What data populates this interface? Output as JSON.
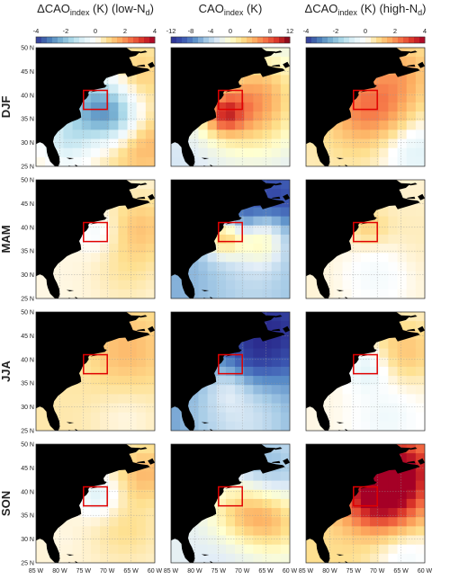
{
  "chart_data": {
    "type": "heatmap",
    "columns": [
      {
        "delta": "Δ",
        "base": "CAO",
        "sub": "index",
        "unit": " (K)",
        "tail": " (low-N",
        "tailsub": "d",
        "close": ")",
        "colorbar": {
          "ticks": [
            "-4",
            "-2",
            "0",
            "2",
            "4"
          ],
          "range": [
            -4,
            4
          ],
          "colors": [
            "#313695",
            "#4575b4",
            "#74add1",
            "#abd9e9",
            "#e0f3f8",
            "#ffffff",
            "#fee090",
            "#fdae61",
            "#f46d43",
            "#d73027",
            "#a50026"
          ]
        }
      },
      {
        "delta": "",
        "base": "CAO",
        "sub": "index",
        "unit": " (K)",
        "tail": "",
        "tailsub": "",
        "close": "",
        "colorbar": {
          "ticks": [
            "-12",
            "-8",
            "-4",
            "0",
            "4",
            "8",
            "12"
          ],
          "range": [
            -12,
            12
          ],
          "colors": [
            "#2b2d8f",
            "#3a55b0",
            "#5b8fc9",
            "#a6cbe6",
            "#e3eef7",
            "#ffffd0",
            "#fee08b",
            "#fdae61",
            "#f46d43",
            "#d73027",
            "#7a0018"
          ]
        }
      },
      {
        "delta": "Δ",
        "base": "CAO",
        "sub": "index",
        "unit": " (K)",
        "tail": " (high-N",
        "tailsub": "d",
        "close": ")",
        "colorbar": {
          "ticks": [
            "-4",
            "-2",
            "0",
            "2",
            "4"
          ],
          "range": [
            -4,
            4
          ],
          "colors": [
            "#313695",
            "#4575b4",
            "#74add1",
            "#abd9e9",
            "#e0f3f8",
            "#ffffff",
            "#fee090",
            "#fdae61",
            "#f46d43",
            "#d73027",
            "#a50026"
          ]
        }
      }
    ],
    "rows": [
      "DJF",
      "MAM",
      "JJA",
      "SON"
    ],
    "lat_ticks": [
      "50 N",
      "45 N",
      "40 N",
      "35 N",
      "30 N",
      "25 N"
    ],
    "lon_ticks": [
      "85 W",
      "80 W",
      "75 W",
      "70 W",
      "65 W",
      "60 W"
    ],
    "lon_range": [
      -85,
      -60
    ],
    "lat_range": [
      25,
      50
    ],
    "region_box": {
      "lon": [
        -75,
        -70
      ],
      "lat": [
        37,
        41
      ],
      "color": "#e00000"
    },
    "land_color": "#000000",
    "grid": true,
    "panels": [
      [
        {
          "base": 0.5,
          "zones": [
            {
              "lon": -73,
              "lat": 38,
              "r": 5,
              "v": -2.0
            },
            {
              "lon": -68,
              "lat": 35,
              "r": 4,
              "v": -1.2
            },
            {
              "lon": -63,
              "lat": 30,
              "r": 5,
              "v": 1.6
            },
            {
              "lon": -64,
              "lat": 44,
              "r": 4,
              "v": 1.2
            },
            {
              "lon": -79,
              "lat": 30,
              "r": 4,
              "v": -0.8
            }
          ]
        },
        {
          "base": -3,
          "zones": [
            {
              "lon": -68,
              "lat": 38,
              "r": 7,
              "v": 5.5
            },
            {
              "lon": -74,
              "lat": 36,
              "r": 3,
              "v": 4.5
            },
            {
              "lon": -62,
              "lat": 44,
              "r": 5,
              "v": -2
            },
            {
              "lon": -72,
              "lat": 28,
              "r": 6,
              "v": -3
            }
          ]
        },
        {
          "base": 0.5,
          "zones": [
            {
              "lon": -72,
              "lat": 38,
              "r": 6,
              "v": 2.3
            },
            {
              "lon": -66,
              "lat": 36,
              "r": 4,
              "v": 0.8
            },
            {
              "lon": -62,
              "lat": 28,
              "r": 5,
              "v": -0.8
            },
            {
              "lon": -64,
              "lat": 45,
              "r": 4,
              "v": 1.3
            }
          ]
        }
      ],
      [
        {
          "base": 0.2,
          "zones": [
            {
              "lon": -72,
              "lat": 39,
              "r": 3,
              "v": -0.4
            },
            {
              "lon": -63,
              "lat": 40,
              "r": 5,
              "v": 1.2
            },
            {
              "lon": -66,
              "lat": 30,
              "r": 5,
              "v": 0.6
            }
          ]
        },
        {
          "base": -6,
          "zones": [
            {
              "lon": -64,
              "lat": 45,
              "r": 6,
              "v": -11
            },
            {
              "lon": -70,
              "lat": 41,
              "r": 3,
              "v": -9
            },
            {
              "lon": -74,
              "lat": 38,
              "r": 3,
              "v": 2.5
            },
            {
              "lon": -66,
              "lat": 38,
              "r": 4,
              "v": 1.8
            },
            {
              "lon": -68,
              "lat": 28,
              "r": 7,
              "v": -4
            }
          ]
        },
        {
          "base": 0.3,
          "zones": [
            {
              "lon": -72,
              "lat": 40,
              "r": 3,
              "v": 1.0
            },
            {
              "lon": -63,
              "lat": 38,
              "r": 6,
              "v": 0.5
            },
            {
              "lon": -70,
              "lat": 30,
              "r": 5,
              "v": -0.3
            }
          ]
        }
      ],
      [
        {
          "base": 0.6,
          "zones": [
            {
              "lon": -66,
              "lat": 42,
              "r": 6,
              "v": 1.4
            },
            {
              "lon": -74,
              "lat": 39,
              "r": 3,
              "v": 0.5
            },
            {
              "lon": -66,
              "lat": 28,
              "r": 5,
              "v": 0.2
            }
          ]
        },
        {
          "base": -7,
          "zones": [
            {
              "lon": -64,
              "lat": 46,
              "r": 7,
              "v": -12
            },
            {
              "lon": -68,
              "lat": 40,
              "r": 4,
              "v": -9
            },
            {
              "lon": -73,
              "lat": 34,
              "r": 3,
              "v": -5
            },
            {
              "lon": -70,
              "lat": 28,
              "r": 8,
              "v": -3
            }
          ]
        },
        {
          "base": 0.2,
          "zones": [
            {
              "lon": -64,
              "lat": 42,
              "r": 5,
              "v": 1.2
            },
            {
              "lon": -72,
              "lat": 38,
              "r": 3,
              "v": -0.8
            },
            {
              "lon": -68,
              "lat": 28,
              "r": 5,
              "v": -0.4
            }
          ]
        }
      ],
      [
        {
          "base": 0.3,
          "zones": [
            {
              "lon": -72,
              "lat": 39,
              "r": 3,
              "v": -0.8
            },
            {
              "lon": -62,
              "lat": 44,
              "r": 4,
              "v": 1.4
            },
            {
              "lon": -66,
              "lat": 32,
              "r": 5,
              "v": 0.8
            },
            {
              "lon": -79,
              "lat": 30,
              "r": 3,
              "v": 0.2
            }
          ]
        },
        {
          "base": -2,
          "zones": [
            {
              "lon": -65,
              "lat": 44,
              "r": 6,
              "v": -6
            },
            {
              "lon": -70,
              "lat": 36,
              "r": 5,
              "v": 3.5
            },
            {
              "lon": -63,
              "lat": 34,
              "r": 5,
              "v": 3.0
            },
            {
              "lon": -73,
              "lat": 28,
              "r": 6,
              "v": -3
            }
          ]
        },
        {
          "base": 0.8,
          "zones": [
            {
              "lon": -71,
              "lat": 40,
              "r": 5,
              "v": 3.8
            },
            {
              "lon": -64,
              "lat": 45,
              "r": 5,
              "v": 3.5
            },
            {
              "lon": -66,
              "lat": 36,
              "r": 5,
              "v": 2.0
            },
            {
              "lon": -64,
              "lat": 27,
              "r": 5,
              "v": -0.4
            }
          ]
        }
      ]
    ]
  }
}
